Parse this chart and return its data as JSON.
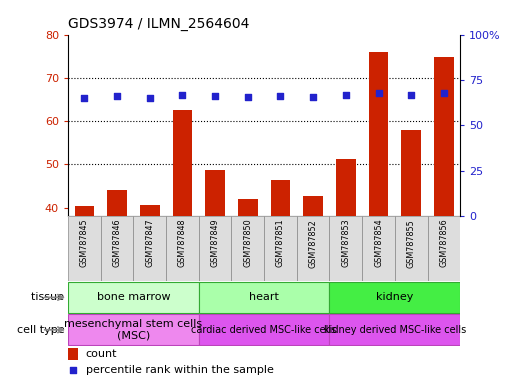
{
  "title": "GDS3974 / ILMN_2564604",
  "samples": [
    "GSM787845",
    "GSM787846",
    "GSM787847",
    "GSM787848",
    "GSM787849",
    "GSM787850",
    "GSM787851",
    "GSM787852",
    "GSM787853",
    "GSM787854",
    "GSM787855",
    "GSM787856"
  ],
  "count_values": [
    40.3,
    44.0,
    40.5,
    62.5,
    48.7,
    42.0,
    46.3,
    42.7,
    51.2,
    76.0,
    58.0,
    74.8
  ],
  "percentile_values": [
    65,
    66,
    65,
    67,
    66,
    65.5,
    66,
    65.8,
    66.5,
    68,
    67,
    68
  ],
  "ylim_left": [
    38,
    80
  ],
  "ylim_right": [
    0,
    100
  ],
  "yticks_left": [
    40,
    50,
    60,
    70,
    80
  ],
  "yticks_right": [
    0,
    25,
    50,
    75,
    100
  ],
  "bar_color": "#cc2200",
  "dot_color": "#2222cc",
  "tissue_groups": [
    {
      "label": "bone marrow",
      "start": 0,
      "end": 3,
      "color": "#ccffcc"
    },
    {
      "label": "heart",
      "start": 4,
      "end": 7,
      "color": "#aaffaa"
    },
    {
      "label": "kidney",
      "start": 8,
      "end": 11,
      "color": "#44dd44"
    }
  ],
  "celltype_groups": [
    {
      "label": "mesenchymal stem cells\n(MSC)",
      "start": 0,
      "end": 3,
      "color": "#ee88ee"
    },
    {
      "label": "cardiac derived MSC-like cells",
      "start": 4,
      "end": 7,
      "color": "#ee55ee"
    },
    {
      "label": "kidney derived MSC-like cells",
      "start": 8,
      "end": 11,
      "color": "#ee55ee"
    }
  ],
  "tissue_label": "tissue",
  "celltype_label": "cell type",
  "legend_count": "count",
  "legend_percentile": "percentile rank within the sample",
  "bg_color": "white",
  "tick_color_left": "#cc2200",
  "tick_color_right": "#2222cc",
  "sample_bg_color": "#dddddd",
  "sample_border_color": "#888888"
}
